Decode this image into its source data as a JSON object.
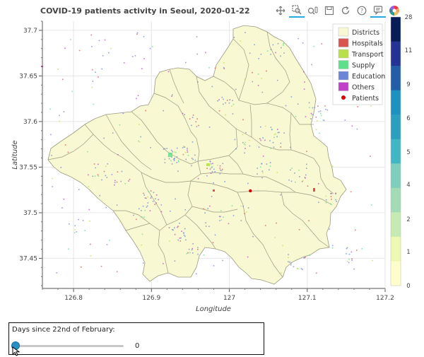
{
  "title": "COVID-19 patients activity in Seoul, 2020-01-22",
  "toolbar": {
    "tools": [
      "pan-icon",
      "box-zoom-icon",
      "wheel-zoom-icon",
      "save-icon",
      "reset-icon",
      "help-icon",
      "hover-icon",
      "bokeh-logo-icon"
    ],
    "active_color": "#26aae1"
  },
  "colors": {
    "districts_fill": "#f8f8d2",
    "districts_stroke": "#9a9a80",
    "hospitals": "#d9534f",
    "transport": "#b8e04a",
    "supply": "#5ee08a",
    "education": "#6b86d6",
    "others": "#c040c8",
    "patients": "#d40000",
    "grid": "#e6e6e6"
  },
  "chart_data": {
    "type": "scatter",
    "title": "COVID-19 patients activity in Seoul, 2020-01-22",
    "xlabel": "Longitude",
    "ylabel": "Latitude",
    "xlim": [
      126.76,
      127.2
    ],
    "ylim": [
      37.417,
      37.71
    ],
    "xticks": [
      "126.8",
      "126.9",
      "127",
      "127.1",
      "127.2"
    ],
    "yticks": [
      "37.45",
      "37.5",
      "37.55",
      "37.6",
      "37.65",
      "37.7"
    ],
    "grid": true,
    "legend_position": "top-right",
    "legend": [
      {
        "name": "Districts",
        "kind": "patch",
        "color": "#f8f8d2"
      },
      {
        "name": "Hospitals",
        "kind": "patch",
        "color": "#d9534f"
      },
      {
        "name": "Transport",
        "kind": "patch",
        "color": "#b8e04a"
      },
      {
        "name": "Supply",
        "kind": "patch",
        "color": "#5ee08a"
      },
      {
        "name": "Education",
        "kind": "patch",
        "color": "#6b86d6"
      },
      {
        "name": "Others",
        "kind": "patch",
        "color": "#c040c8"
      },
      {
        "name": "Patients",
        "kind": "circle",
        "color": "#d40000"
      }
    ],
    "patients": [
      {
        "lon": 127.027,
        "lat": 37.524
      }
    ],
    "colorbar": {
      "ticks": [
        "0",
        "1",
        "2",
        "4",
        "5",
        "6",
        "9",
        "11",
        "28"
      ],
      "colors": [
        "#ffffcc",
        "#edf8b1",
        "#c7e9b4",
        "#a3dbb7",
        "#7fcdbb",
        "#41b6c4",
        "#2c9fc0",
        "#1d91c0",
        "#225ea8",
        "#253494",
        "#081d58"
      ]
    }
  },
  "slider": {
    "label": "Days since 22nd of February:",
    "value": "0",
    "fraction": 0.0
  }
}
